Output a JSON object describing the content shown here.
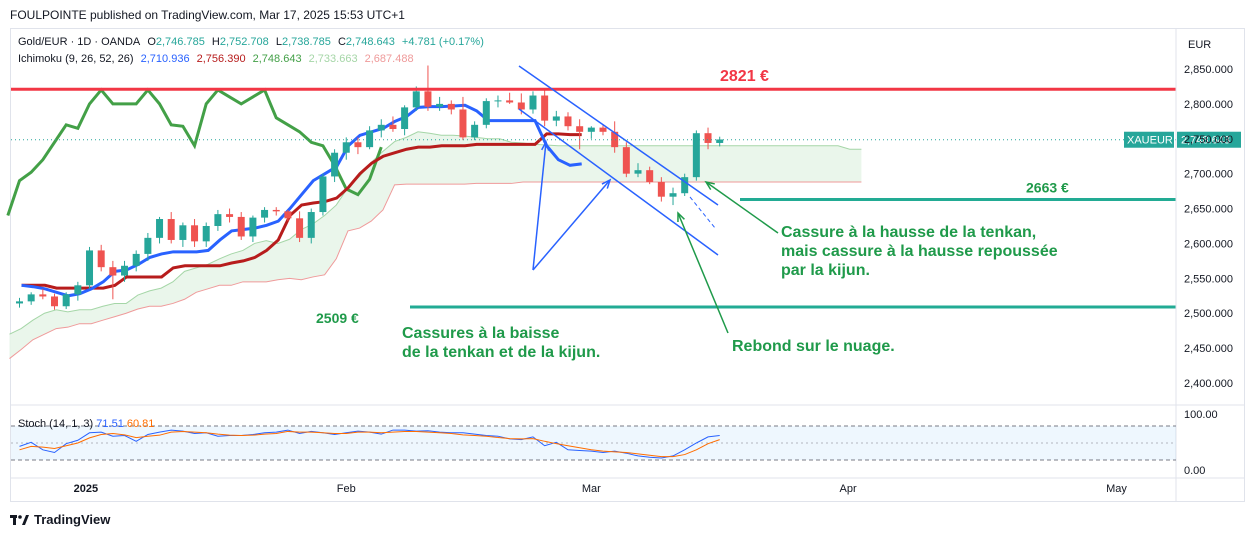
{
  "header": {
    "text": "FOULPOINTE published on TradingView.com, Mar 17, 2025 15:53 UTC+1"
  },
  "legend": {
    "symbol": "Gold/EUR · 1D · OANDA",
    "o_label": "O",
    "o": "2,746.785",
    "h_label": "H",
    "h": "2,752.708",
    "l_label": "L",
    "l": "2,738.785",
    "c_label": "C",
    "c": "2,748.643",
    "change": "+4.781 (+0.17%)",
    "ichimoku_label": "Ichimoku (9, 26, 52, 26)",
    "ichimoku_values": [
      "2,710.936",
      "2,756.390",
      "2,748.643",
      "2,733.663",
      "2,687.488"
    ]
  },
  "stoch": {
    "label": "Stoch (14, 1, 3)",
    "k": "71.51",
    "d": "60.81"
  },
  "currency": "EUR",
  "price_tag": {
    "symbol": "XAUEUR",
    "value": "2,748.643"
  },
  "colors": {
    "up": "#26a69a",
    "down": "#ef5350",
    "tenkan": "#2962ff",
    "kijun": "#b71c1c",
    "chikou": "#43a047",
    "resistance": "#f23645",
    "support": "#22ab94",
    "annotation": "#1f9a4a",
    "channel": "#2962ff"
  },
  "annotations": {
    "resistance": "2821 €",
    "support_mid": "2663 €",
    "support_low": "2509 €",
    "text_left": [
      "Cassures à la baisse",
      "de la tenkan et de la kijun."
    ],
    "text_right": [
      "Cassure à la hausse de la tenkan,",
      "mais cassure à la hausse repoussée",
      "par la kijun."
    ],
    "text_bottom": "Rebond sur le nuage."
  },
  "footer": {
    "brand": "TradingView"
  },
  "chart_data": {
    "type": "candlestick",
    "price_ticks": [
      "2,850.000",
      "2,800.000",
      "2,750.000",
      "2,700.000",
      "2,650.000",
      "2,600.000",
      "2,550.000",
      "2,500.000",
      "2,450.000",
      "2,400.000"
    ],
    "price_tick_values": [
      2850,
      2800,
      2750,
      2700,
      2650,
      2600,
      2550,
      2500,
      2450,
      2400
    ],
    "stoch_ticks": [
      "100.00",
      "0.00"
    ],
    "stoch_tick_values": [
      100,
      0
    ],
    "time_labels": [
      "2025",
      "Feb",
      "Mar",
      "Apr",
      "May"
    ],
    "time_label_index": [
      5,
      28,
      49,
      71,
      94
    ],
    "ylim": [
      2380,
      2875
    ],
    "resistance_level": 2821,
    "support_levels": [
      2663,
      2509
    ],
    "candles": [
      [
        2514,
        2522,
        2508,
        2517
      ],
      [
        2517,
        2530,
        2512,
        2527
      ],
      [
        2527,
        2535,
        2520,
        2524
      ],
      [
        2524,
        2528,
        2505,
        2510
      ],
      [
        2510,
        2530,
        2506,
        2527
      ],
      [
        2527,
        2545,
        2518,
        2540
      ],
      [
        2540,
        2595,
        2535,
        2590
      ],
      [
        2590,
        2598,
        2560,
        2566
      ],
      [
        2566,
        2575,
        2520,
        2554
      ],
      [
        2554,
        2575,
        2545,
        2568
      ],
      [
        2568,
        2590,
        2560,
        2585
      ],
      [
        2585,
        2615,
        2575,
        2608
      ],
      [
        2608,
        2638,
        2600,
        2635
      ],
      [
        2635,
        2645,
        2600,
        2605
      ],
      [
        2605,
        2630,
        2595,
        2626
      ],
      [
        2626,
        2635,
        2595,
        2603
      ],
      [
        2603,
        2630,
        2595,
        2625
      ],
      [
        2625,
        2648,
        2618,
        2642
      ],
      [
        2642,
        2650,
        2630,
        2638
      ],
      [
        2638,
        2645,
        2605,
        2610
      ],
      [
        2610,
        2640,
        2602,
        2637
      ],
      [
        2637,
        2652,
        2630,
        2648
      ],
      [
        2648,
        2652,
        2640,
        2646
      ],
      [
        2646,
        2648,
        2632,
        2636
      ],
      [
        2636,
        2646,
        2602,
        2608
      ],
      [
        2608,
        2650,
        2600,
        2645
      ],
      [
        2645,
        2700,
        2640,
        2696
      ],
      [
        2696,
        2735,
        2688,
        2730
      ],
      [
        2730,
        2752,
        2720,
        2745
      ],
      [
        2745,
        2752,
        2728,
        2738
      ],
      [
        2738,
        2768,
        2735,
        2762
      ],
      [
        2762,
        2778,
        2752,
        2770
      ],
      [
        2770,
        2782,
        2760,
        2764
      ],
      [
        2764,
        2798,
        2755,
        2795
      ],
      [
        2795,
        2825,
        2790,
        2818
      ],
      [
        2818,
        2855,
        2790,
        2796
      ],
      [
        2796,
        2810,
        2790,
        2800
      ],
      [
        2800,
        2805,
        2785,
        2792
      ],
      [
        2792,
        2810,
        2748,
        2752
      ],
      [
        2752,
        2775,
        2748,
        2770
      ],
      [
        2770,
        2808,
        2765,
        2804
      ],
      [
        2804,
        2812,
        2795,
        2805
      ],
      [
        2805,
        2816,
        2800,
        2802
      ],
      [
        2802,
        2815,
        2785,
        2792
      ],
      [
        2792,
        2818,
        2786,
        2812
      ],
      [
        2812,
        2822,
        2768,
        2776
      ],
      [
        2776,
        2790,
        2768,
        2782
      ],
      [
        2782,
        2788,
        2762,
        2768
      ],
      [
        2768,
        2778,
        2735,
        2760
      ],
      [
        2760,
        2768,
        2750,
        2766
      ],
      [
        2766,
        2770,
        2755,
        2760
      ],
      [
        2760,
        2775,
        2730,
        2738
      ],
      [
        2738,
        2745,
        2695,
        2700
      ],
      [
        2700,
        2715,
        2695,
        2705
      ],
      [
        2705,
        2710,
        2685,
        2688
      ],
      [
        2688,
        2695,
        2660,
        2667
      ],
      [
        2667,
        2680,
        2655,
        2672
      ],
      [
        2672,
        2700,
        2668,
        2695
      ],
      [
        2695,
        2762,
        2690,
        2758
      ],
      [
        2758,
        2766,
        2735,
        2744
      ],
      [
        2744,
        2753,
        2739,
        2749
      ]
    ],
    "tenkan": [
      2540,
      2538,
      2535,
      2530,
      2525,
      2528,
      2535,
      2545,
      2560,
      2562,
      2570,
      2580,
      2585,
      2588,
      2588,
      2588,
      2590,
      2605,
      2618,
      2620,
      2622,
      2626,
      2632,
      2650,
      2670,
      2690,
      2700,
      2710,
      2740,
      2755,
      2760,
      2765,
      2775,
      2782,
      2795,
      2796,
      2796,
      2797,
      2798,
      2790,
      2776,
      2776,
      2776,
      2776,
      2776,
      2740,
      2720,
      2712,
      2714
    ],
    "kijun": [
      2540,
      2540,
      2540,
      2536,
      2536,
      2536,
      2536,
      2536,
      2540,
      2552,
      2552,
      2552,
      2552,
      2565,
      2568,
      2568,
      2568,
      2568,
      2572,
      2575,
      2580,
      2590,
      2605,
      2640,
      2655,
      2658,
      2660,
      2665,
      2680,
      2700,
      2715,
      2725,
      2730,
      2735,
      2738,
      2738,
      2740,
      2740,
      2740,
      2742,
      2742,
      2742,
      2742,
      2742,
      2742,
      2757,
      2757,
      2756,
      2756
    ],
    "chikou": [
      2640,
      2690,
      2702,
      2720,
      2745,
      2770,
      2765,
      2800,
      2820,
      2800,
      2800,
      2800,
      2820,
      2800,
      2770,
      2768,
      2740,
      2800,
      2820,
      2810,
      2800,
      2810,
      2820,
      2780,
      2770,
      2760,
      2745,
      2740,
      2712,
      2678,
      2670,
      2692,
      2738
    ],
    "span_a": [
      2470,
      2478,
      2490,
      2500,
      2505,
      2502,
      2505,
      2505,
      2510,
      2514,
      2514,
      2526,
      2532,
      2536,
      2545,
      2560,
      2565,
      2570,
      2578,
      2585,
      2590,
      2600,
      2604,
      2600,
      2606,
      2620,
      2628,
      2640,
      2655,
      2680,
      2696,
      2716,
      2732,
      2746,
      2752,
      2760,
      2758,
      2755,
      2755,
      2754,
      2752,
      2750,
      2750,
      2745,
      2744,
      2742,
      2741,
      2740
    ],
    "span_b": [
      2435,
      2448,
      2462,
      2470,
      2478,
      2480,
      2485,
      2485,
      2490,
      2495,
      2500,
      2506,
      2510,
      2510,
      2514,
      2520,
      2530,
      2535,
      2540,
      2540,
      2545,
      2545,
      2545,
      2548,
      2550,
      2548,
      2552,
      2555,
      2578,
      2618,
      2622,
      2632,
      2648,
      2684,
      2685,
      2685,
      2685,
      2685,
      2685,
      2685,
      2686,
      2686,
      2686,
      2686,
      2688,
      2688,
      2688,
      2688
    ],
    "stoch_k": [
      40,
      52,
      30,
      22,
      48,
      58,
      80,
      82,
      70,
      72,
      55,
      75,
      82,
      88,
      85,
      78,
      80,
      70,
      72,
      72,
      75,
      80,
      82,
      88,
      78,
      84,
      80,
      75,
      80,
      85,
      82,
      76,
      88,
      88,
      85,
      86,
      82,
      80,
      80,
      76,
      72,
      70,
      62,
      60,
      68,
      42,
      52,
      30,
      28,
      26,
      22,
      26,
      20,
      12,
      8,
      6,
      12,
      30,
      50,
      68,
      72
    ],
    "stoch_d": [
      30,
      40,
      38,
      34,
      42,
      50,
      65,
      75,
      78,
      74,
      66,
      70,
      73,
      82,
      84,
      82,
      80,
      76,
      73,
      72,
      73,
      76,
      78,
      84,
      82,
      82,
      80,
      78,
      78,
      82,
      82,
      80,
      82,
      84,
      84,
      82,
      80,
      78,
      74,
      72,
      70,
      66,
      63,
      62,
      63,
      55,
      48,
      42,
      36,
      30,
      26,
      24,
      22,
      18,
      14,
      10,
      10,
      16,
      30,
      48,
      60
    ]
  }
}
